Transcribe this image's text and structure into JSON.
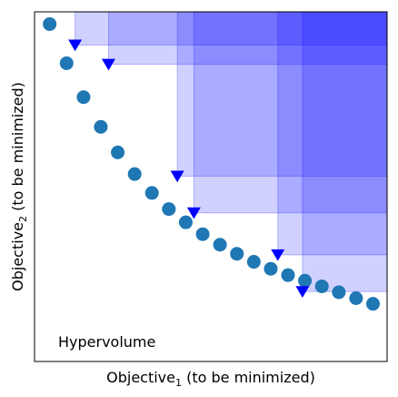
{
  "chart_data": {
    "type": "scatter",
    "title": "",
    "xlabel": {
      "main": "Objective",
      "subscript": "1",
      "suffix": " (to be minimized)"
    },
    "ylabel": {
      "main": "Objective",
      "subscript": "2",
      "suffix": " (to be minimized)"
    },
    "xlim": [
      0,
      10
    ],
    "ylim": [
      0,
      10
    ],
    "xticks": [],
    "yticks": [],
    "grid": false,
    "annotation": "Hypervolume",
    "reference_point": [
      10,
      10
    ],
    "series": [
      {
        "marker": "circle",
        "color": "#1f77b4",
        "x": [
          0.43,
          0.91,
          1.39,
          1.88,
          2.36,
          2.84,
          3.33,
          3.81,
          4.29,
          4.77,
          5.26,
          5.74,
          6.22,
          6.7,
          7.19,
          7.67,
          8.15,
          8.63,
          9.12,
          9.6
        ],
        "y": [
          9.65,
          8.53,
          7.56,
          6.71,
          5.98,
          5.36,
          4.82,
          4.36,
          3.98,
          3.64,
          3.34,
          3.08,
          2.85,
          2.65,
          2.47,
          2.31,
          2.15,
          1.98,
          1.81,
          1.65
        ]
      },
      {
        "marker": "triangle-down",
        "color": "#0000ff",
        "hypervolume_fill": "#0000ff",
        "hypervolume_fill_opacity": 0.18,
        "x": [
          1.15,
          2.1,
          4.05,
          4.52,
          6.9,
          7.6
        ],
        "y": [
          9.05,
          8.5,
          5.3,
          4.25,
          3.05,
          2.0
        ]
      }
    ]
  }
}
